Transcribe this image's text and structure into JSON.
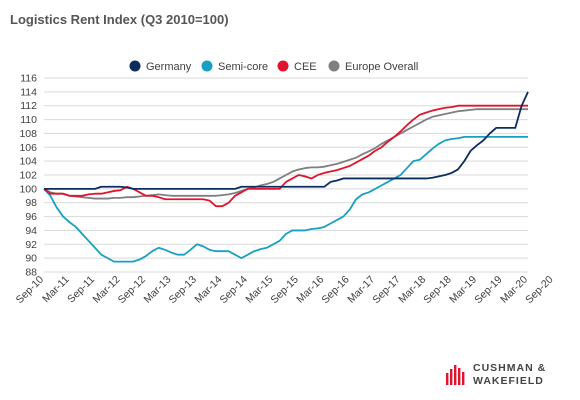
{
  "chart_data": {
    "type": "line",
    "title": "Logistics Rent Index (Q3 2010=100)",
    "ylim": [
      88,
      116
    ],
    "yticks": [
      88,
      90,
      92,
      94,
      96,
      98,
      100,
      102,
      104,
      106,
      108,
      110,
      112,
      114,
      116
    ],
    "grid": "horizontal",
    "legend_position": "top",
    "x_tick_labels": [
      "Sep-10",
      "Mar-11",
      "Sep-11",
      "Mar-12",
      "Sep-12",
      "Mar-13",
      "Sep-13",
      "Mar-14",
      "Sep-14",
      "Mar-15",
      "Sep-15",
      "Mar-16",
      "Sep-16",
      "Mar-17",
      "Sep-17",
      "Mar-18",
      "Sep-18",
      "Mar-19",
      "Sep-19",
      "Mar-20",
      "Sep-20"
    ],
    "series": [
      {
        "name": "Germany",
        "color": "#0b2d5e",
        "values": [
          100.0,
          100.0,
          100.0,
          100.0,
          100.0,
          100.0,
          100.0,
          100.0,
          100.0,
          100.3,
          100.3,
          100.3,
          100.3,
          100.2,
          100.0,
          100.0,
          100.0,
          100.0,
          100.0,
          100.0,
          100.0,
          100.0,
          100.0,
          100.0,
          100.0,
          100.0,
          100.0,
          100.0,
          100.0,
          100.0,
          100.0,
          100.3,
          100.3,
          100.3,
          100.3,
          100.3,
          100.3,
          100.3,
          100.3,
          100.3,
          100.3,
          100.3,
          100.3,
          100.3,
          100.3,
          101.0,
          101.2,
          101.5,
          101.5,
          101.5,
          101.5,
          101.5,
          101.5,
          101.5,
          101.5,
          101.5,
          101.5,
          101.5,
          101.5,
          101.5,
          101.5,
          101.6,
          101.8,
          102.0,
          102.3,
          102.8,
          104.0,
          105.5,
          106.3,
          107.0,
          108.0,
          108.8,
          108.8,
          108.8,
          108.8,
          112.0,
          114.0
        ]
      },
      {
        "name": "Semi-core",
        "color": "#17a0c3",
        "values": [
          100.0,
          99.0,
          97.3,
          96.0,
          95.2,
          94.5,
          93.5,
          92.5,
          91.5,
          90.5,
          90.0,
          89.5,
          89.5,
          89.5,
          89.5,
          89.8,
          90.3,
          91.0,
          91.5,
          91.2,
          90.8,
          90.5,
          90.5,
          91.2,
          92.0,
          91.7,
          91.2,
          91.0,
          91.0,
          91.0,
          90.5,
          90.0,
          90.5,
          91.0,
          91.3,
          91.5,
          92.0,
          92.5,
          93.5,
          94.0,
          94.0,
          94.0,
          94.2,
          94.3,
          94.5,
          95.0,
          95.5,
          96.0,
          97.0,
          98.5,
          99.2,
          99.5,
          100.0,
          100.5,
          101.0,
          101.5,
          102.0,
          103.0,
          104.0,
          104.2,
          105.0,
          105.8,
          106.5,
          107.0,
          107.2,
          107.3,
          107.5,
          107.5,
          107.5,
          107.5,
          107.5,
          107.5,
          107.5,
          107.5,
          107.5,
          107.5,
          107.5
        ]
      },
      {
        "name": "CEE",
        "color": "#e1142d",
        "values": [
          100.0,
          99.3,
          99.3,
          99.3,
          99.0,
          99.0,
          99.0,
          99.2,
          99.3,
          99.3,
          99.5,
          99.7,
          99.8,
          100.3,
          100.0,
          99.5,
          99.0,
          99.0,
          98.8,
          98.5,
          98.5,
          98.5,
          98.5,
          98.5,
          98.5,
          98.5,
          98.3,
          97.5,
          97.5,
          98.0,
          99.0,
          99.5,
          100.0,
          100.0,
          100.0,
          100.0,
          100.0,
          100.0,
          101.0,
          101.5,
          102.0,
          101.8,
          101.5,
          102.0,
          102.3,
          102.5,
          102.7,
          103.0,
          103.3,
          103.8,
          104.3,
          104.8,
          105.5,
          106.0,
          106.8,
          107.5,
          108.3,
          109.2,
          110.0,
          110.7,
          111.0,
          111.3,
          111.5,
          111.7,
          111.8,
          112.0,
          112.0,
          112.0,
          112.0,
          112.0,
          112.0,
          112.0,
          112.0,
          112.0,
          112.0,
          112.0,
          112.0
        ]
      },
      {
        "name": "Europe Overall",
        "color": "#7f7f7f",
        "values": [
          100.0,
          99.5,
          99.3,
          99.3,
          99.0,
          98.9,
          98.8,
          98.7,
          98.6,
          98.6,
          98.6,
          98.7,
          98.7,
          98.8,
          98.8,
          98.9,
          99.0,
          99.1,
          99.2,
          99.1,
          99.0,
          99.0,
          99.0,
          99.0,
          99.0,
          99.0,
          99.0,
          99.0,
          99.1,
          99.2,
          99.4,
          99.7,
          100.0,
          100.2,
          100.5,
          100.7,
          101.0,
          101.5,
          102.0,
          102.5,
          102.8,
          103.0,
          103.1,
          103.1,
          103.2,
          103.4,
          103.6,
          103.9,
          104.2,
          104.5,
          105.0,
          105.4,
          105.9,
          106.5,
          107.0,
          107.5,
          108.0,
          108.5,
          109.0,
          109.5,
          110.0,
          110.4,
          110.6,
          110.8,
          111.0,
          111.2,
          111.3,
          111.4,
          111.5,
          111.5,
          111.5,
          111.5,
          111.5,
          111.5,
          111.5,
          111.5,
          111.5
        ]
      }
    ]
  },
  "logo": {
    "line1": "CUSHMAN &",
    "line2": "WAKEFIELD",
    "color": "#e1142d"
  }
}
